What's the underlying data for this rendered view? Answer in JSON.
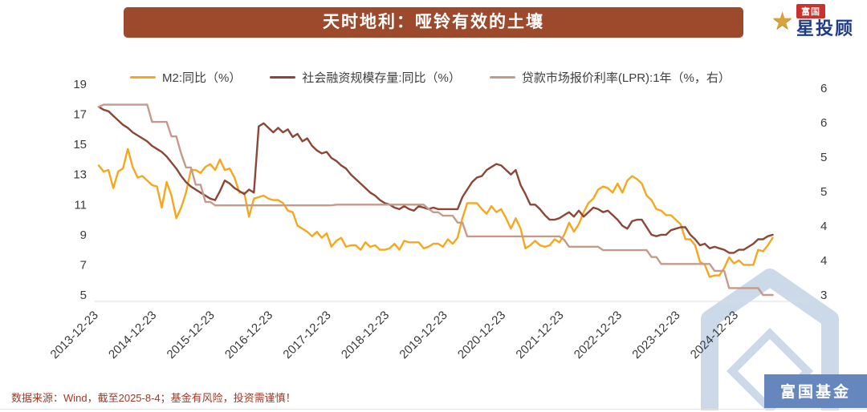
{
  "page": {
    "footer_note": "数据来源：Wind，截至2025-8-4；基金有风险，投资需谨慎！"
  },
  "brand": {
    "star_icon": "star-icon",
    "badge_text": "富国",
    "name_text": "星投顾",
    "watermark_label": "富国基金",
    "star_color": "#D9A23B",
    "badge_color": "#C8342C",
    "name_color": "#1F3C88",
    "watermark_blue": "#5D81BA",
    "watermark_pale": "#C9D7E8"
  },
  "colors": {
    "banner_bg": "#9C4A2B",
    "footer_text": "#9C3A28",
    "axis_text": "#3A3A3A",
    "axis_line": "#DCDCDC"
  },
  "chart_data": {
    "type": "line",
    "title": "天时地利：哑铃有效的土壤",
    "grid": false,
    "legend_position": "top",
    "x_unit": "monthly, Dec-2013 to Jul-2025",
    "x_tick_labels": [
      "2013-12-23",
      "2014-12-23",
      "2015-12-23",
      "2016-12-23",
      "2017-12-23",
      "2018-12-23",
      "2019-12-23",
      "2020-12-23",
      "2021-12-23",
      "2022-12-23",
      "2023-12-23",
      "2024-12-23"
    ],
    "left_axis": {
      "min": 5,
      "max": 19,
      "ticks": [
        19,
        17,
        15,
        13,
        11,
        9,
        7,
        5
      ]
    },
    "right_axis": {
      "min": 3,
      "max": 6,
      "ticks": [
        6,
        5.5,
        5,
        4.5,
        4,
        3.5,
        3
      ],
      "tick_labels": [
        "6",
        "6",
        "5",
        "5",
        "4",
        "4",
        "3"
      ]
    },
    "series": [
      {
        "name": "M2:同比（%）",
        "color": "#F6A71E",
        "axis": "left",
        "values": [
          13.6,
          13.2,
          13.3,
          12.1,
          13.2,
          13.4,
          14.7,
          13.5,
          12.8,
          12.9,
          12.6,
          12.3,
          12.2,
          10.8,
          12.5,
          11.6,
          10.1,
          10.8,
          11.8,
          13.3,
          13.3,
          13.1,
          13.5,
          13.7,
          13.3,
          14.0,
          13.3,
          13.4,
          12.8,
          11.8,
          11.8,
          10.2,
          11.4,
          11.5,
          11.6,
          11.4,
          11.3,
          11.3,
          11.1,
          10.6,
          10.5,
          9.6,
          9.4,
          9.2,
          8.9,
          9.2,
          8.8,
          9.1,
          8.2,
          8.6,
          8.8,
          8.2,
          8.3,
          8.3,
          8.0,
          8.5,
          8.2,
          8.3,
          8.0,
          8.0,
          8.1,
          8.4,
          8.0,
          8.6,
          8.5,
          8.5,
          8.5,
          8.1,
          8.2,
          8.4,
          8.4,
          8.2,
          8.7,
          8.4,
          8.8,
          10.1,
          11.1,
          11.1,
          11.1,
          10.7,
          10.4,
          10.9,
          10.5,
          10.7,
          10.1,
          9.4,
          10.1,
          9.4,
          8.1,
          8.3,
          8.6,
          8.3,
          8.2,
          8.3,
          8.7,
          8.5,
          9.0,
          9.8,
          9.2,
          9.7,
          10.5,
          11.1,
          11.4,
          12.0,
          12.2,
          12.1,
          11.8,
          12.4,
          11.8,
          12.6,
          12.9,
          12.7,
          12.4,
          11.6,
          11.3,
          10.7,
          10.6,
          10.3,
          10.3,
          10.0,
          9.7,
          8.7,
          8.7,
          8.3,
          7.2,
          7.0,
          6.2,
          6.3,
          6.3,
          6.8,
          7.5,
          7.1,
          7.3,
          7.0,
          7.0,
          7.0,
          8.0,
          7.9,
          8.3,
          8.8
        ]
      },
      {
        "name": "社会融资规模存量:同比（%）",
        "color": "#8C4636",
        "axis": "left",
        "values": [
          17.5,
          17.3,
          17.2,
          16.9,
          16.6,
          16.3,
          16.1,
          15.8,
          15.6,
          15.4,
          15.2,
          14.9,
          14.7,
          14.5,
          14.2,
          13.8,
          13.4,
          12.9,
          12.5,
          12.2,
          12.0,
          11.8,
          11.6,
          11.4,
          11.3,
          11.9,
          12.6,
          12.4,
          12.1,
          11.9,
          11.7,
          12.0,
          11.8,
          16.2,
          16.4,
          16.1,
          15.8,
          16.1,
          15.8,
          16.0,
          15.5,
          15.7,
          15.2,
          15.4,
          14.9,
          14.6,
          14.4,
          14.5,
          14.1,
          13.9,
          13.6,
          13.4,
          13.0,
          12.7,
          12.4,
          12.1,
          11.8,
          11.6,
          11.3,
          11.1,
          11.0,
          10.8,
          10.7,
          10.9,
          10.7,
          10.6,
          10.9,
          10.8,
          10.7,
          10.8,
          10.7,
          10.7,
          10.7,
          10.7,
          10.7,
          11.5,
          12.0,
          12.5,
          12.8,
          12.9,
          13.3,
          13.5,
          13.7,
          13.6,
          13.3,
          13.0,
          13.3,
          12.3,
          11.7,
          11.0,
          11.0,
          10.7,
          10.3,
          10.0,
          10.0,
          10.1,
          10.3,
          10.5,
          10.2,
          10.6,
          10.2,
          10.5,
          10.8,
          10.7,
          10.5,
          10.6,
          10.3,
          10.0,
          9.6,
          9.4,
          9.9,
          10.0,
          10.0,
          9.5,
          9.0,
          8.9,
          9.0,
          9.0,
          9.3,
          9.4,
          9.5,
          9.5,
          9.0,
          8.7,
          8.3,
          8.4,
          8.1,
          8.2,
          8.1,
          8.0,
          7.8,
          7.8,
          8.0,
          8.0,
          8.2,
          8.4,
          8.7,
          8.7,
          8.9,
          9.0
        ]
      },
      {
        "name": "贷款市场报价利率(LPR):1年（%，右）",
        "color": "#C49A8B",
        "axis": "right",
        "values": [
          5.73,
          5.76,
          5.76,
          5.76,
          5.76,
          5.76,
          5.76,
          5.76,
          5.76,
          5.76,
          5.76,
          5.51,
          5.51,
          5.51,
          5.51,
          5.3,
          5.3,
          5.05,
          4.85,
          4.85,
          4.6,
          4.6,
          4.35,
          4.35,
          4.3,
          4.3,
          4.3,
          4.3,
          4.3,
          4.3,
          4.3,
          4.3,
          4.3,
          4.3,
          4.3,
          4.3,
          4.3,
          4.3,
          4.3,
          4.3,
          4.3,
          4.3,
          4.3,
          4.3,
          4.3,
          4.3,
          4.3,
          4.3,
          4.3,
          4.31,
          4.31,
          4.31,
          4.31,
          4.31,
          4.31,
          4.31,
          4.31,
          4.31,
          4.31,
          4.31,
          4.31,
          4.31,
          4.31,
          4.31,
          4.31,
          4.31,
          4.31,
          4.31,
          4.25,
          4.2,
          4.2,
          4.15,
          4.15,
          4.15,
          4.05,
          4.05,
          3.85,
          3.85,
          3.85,
          3.85,
          3.85,
          3.85,
          3.85,
          3.85,
          3.85,
          3.85,
          3.85,
          3.85,
          3.85,
          3.85,
          3.85,
          3.85,
          3.85,
          3.85,
          3.85,
          3.85,
          3.8,
          3.7,
          3.7,
          3.7,
          3.7,
          3.7,
          3.7,
          3.7,
          3.65,
          3.65,
          3.65,
          3.65,
          3.65,
          3.65,
          3.65,
          3.65,
          3.65,
          3.65,
          3.55,
          3.55,
          3.45,
          3.45,
          3.45,
          3.45,
          3.45,
          3.45,
          3.45,
          3.45,
          3.45,
          3.45,
          3.45,
          3.35,
          3.35,
          3.35,
          3.1,
          3.1,
          3.1,
          3.1,
          3.1,
          3.1,
          3.1,
          3.0,
          3.0,
          3.0
        ]
      }
    ]
  }
}
